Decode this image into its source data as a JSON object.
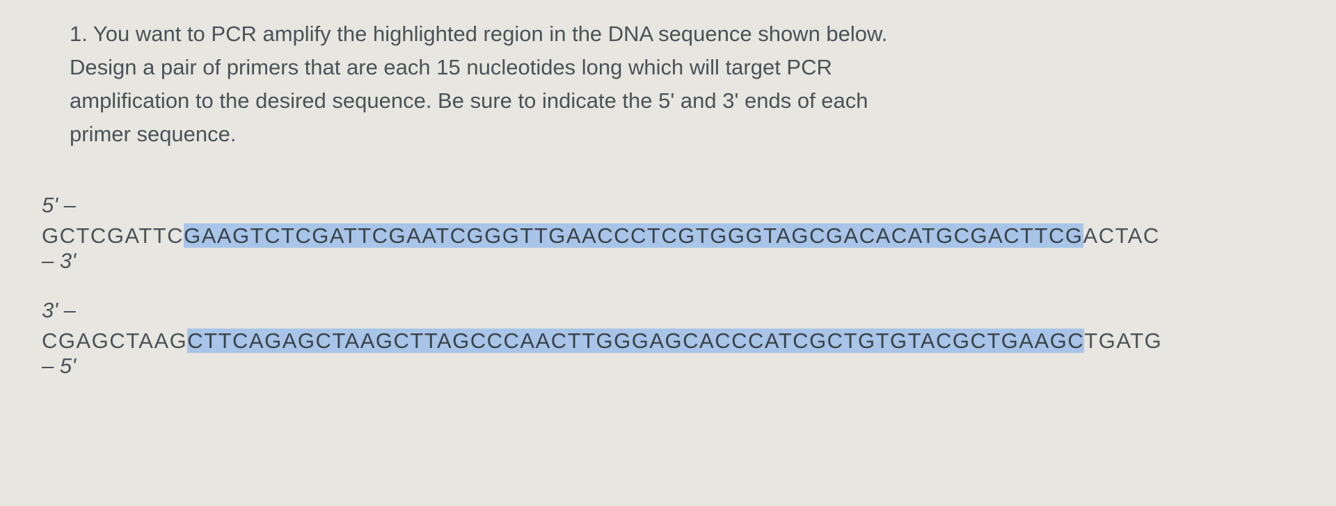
{
  "question": {
    "number": "1.",
    "line1": "You want to PCR amplify the highlighted region in the DNA sequence shown below.",
    "line2": "Design a pair of primers that are each 15 nucleotides long which will target PCR",
    "line3": "amplification to the desired sequence. Be sure to indicate the 5' and 3' ends of each",
    "line4": "primer sequence."
  },
  "top_strand": {
    "label_start": "5' –",
    "pre": "GCTCGATTC",
    "highlighted": "GAAGTCTCGATTCGAATCGGGTTGAACCCTCGTGGGTAGCGACACATGCGACTTCG",
    "post": "ACTAC",
    "label_end": "– 3'"
  },
  "bottom_strand": {
    "label_start": "3' –",
    "pre": "CGAGCTAAG",
    "highlighted": "CTTCAGAGCTAAGCTTAGCCCAACTTGGGAGCACCCATCGCTGTGTACGCTGAAGC",
    "post": "TGATG",
    "label_end": "– 5'"
  },
  "styling": {
    "background_color": "#e8e6e0",
    "text_color": "#4a5258",
    "highlight_color": "#a8c4e8",
    "font_size_pt": 23,
    "font_family": "Arial"
  }
}
